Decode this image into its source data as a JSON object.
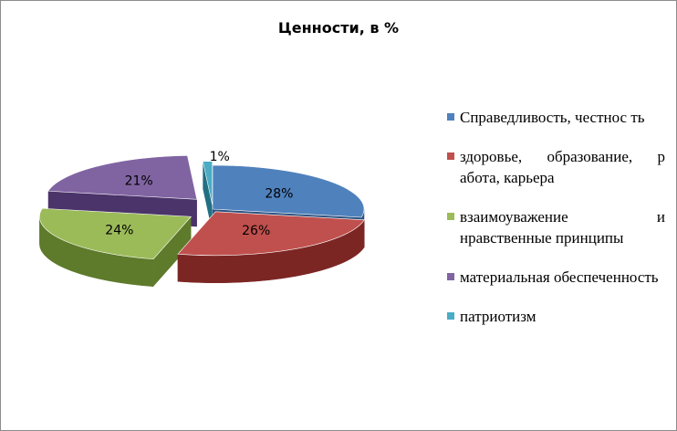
{
  "chart_data": {
    "type": "pie",
    "title": "Ценности, в %",
    "series": [
      {
        "name": "Справедливость, честность",
        "legend_label": "Справедливость, честнос ть",
        "value": 28,
        "data_label": "28%",
        "color": "#4f81bd",
        "side_color": "#2d5280"
      },
      {
        "name": "здоровье, образование, работа, карьера",
        "legend_label": "здоровье, образование, р абота, карьера",
        "value": 26,
        "data_label": "26%",
        "color": "#c0504d",
        "side_color": "#7c2624"
      },
      {
        "name": "взаимоуважение и нравственные принципы",
        "legend_label": "взаимоуважение и нравственные принципы",
        "value": 24,
        "data_label": "24%",
        "color": "#9bbb59",
        "side_color": "#5e7a2b"
      },
      {
        "name": "материальная обеспеченность",
        "legend_label": "материальная обеспеченность",
        "value": 21,
        "data_label": "21%",
        "color": "#8064a2",
        "side_color": "#4b3469"
      },
      {
        "name": "патриотизм",
        "legend_label": "патриотизм",
        "value": 1,
        "data_label": "1%",
        "color": "#4bacc6",
        "side_color": "#236f84"
      }
    ],
    "legend_position": "right",
    "style": "3d-exploded"
  }
}
